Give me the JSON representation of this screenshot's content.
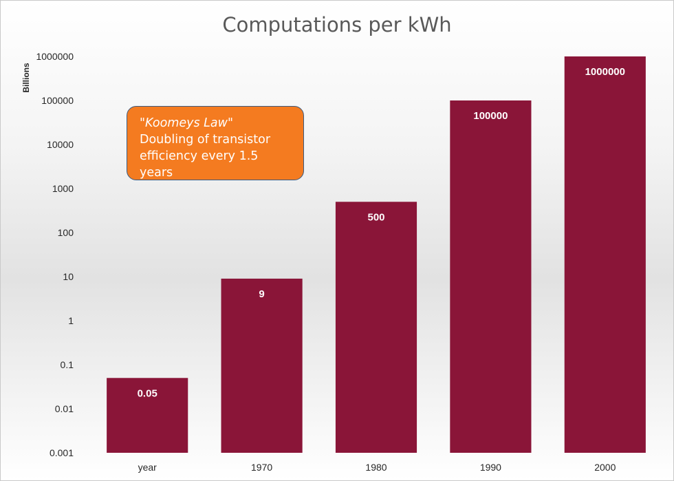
{
  "chart_data": {
    "type": "bar",
    "title": "Computations per kWh",
    "ylabel": "Billions",
    "xlabel": "",
    "yscale": "log",
    "ylim": [
      0.001,
      1000000
    ],
    "yticks": [
      "0.001",
      "0.01",
      "0.1",
      "1",
      "10",
      "100",
      "1000",
      "10000",
      "100000",
      "1000000"
    ],
    "categories": [
      "year",
      "1970",
      "1980",
      "1990",
      "2000"
    ],
    "values": [
      0.05,
      9,
      500,
      100000,
      1000000
    ],
    "data_labels": [
      "0.05",
      "9",
      "500",
      "100000",
      "1000000"
    ],
    "bar_color": "#8a1538",
    "grid": false,
    "annotation": {
      "line1": "\"Koomeys Law\"",
      "line2": "Doubling of transistor",
      "line3": "efficiency every 1.5 years",
      "fill_color": "#f47b20",
      "border_color": "#3a5a80"
    }
  }
}
